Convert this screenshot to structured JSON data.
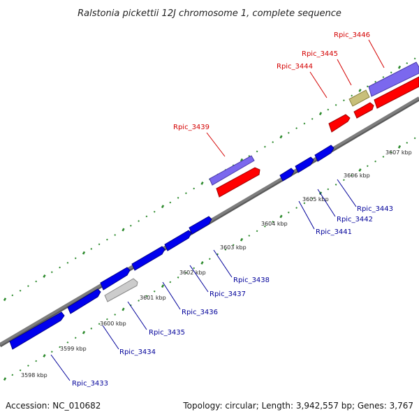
{
  "title": "Ralstonia pickettii 12J chromosome 1, complete sequence",
  "footer": {
    "accession": "Accession: NC_010682",
    "summary": "Topology: circular; Length: 3,942,557 bp; Genes: 3,767"
  },
  "colors": {
    "backbone": "#7d7d7d",
    "dots": "#2e8b2e",
    "plus_label": "#d40000",
    "minus_label": "#00009a",
    "gene_red": "#ff0000",
    "gene_blue": "#0000ee",
    "gene_purple": "#7b68ee",
    "gene_olive": "#c8bf7a",
    "gene_gray": "#cccccc"
  },
  "ticks": [
    "3598 kbp",
    "3599 kbp",
    "3600 kbp",
    "3601 kbp",
    "3602 kbp",
    "3603 kbp",
    "3604 kbp",
    "3605 kbp",
    "3606 kbp",
    "3607 kbp"
  ],
  "genes_plus": [
    {
      "name": "Rpic_3439",
      "features": [
        "purple",
        "red"
      ]
    },
    {
      "name": "Rpic_3444",
      "features": [
        "red"
      ]
    },
    {
      "name": "Rpic_3445",
      "features": [
        "olive",
        "red"
      ]
    },
    {
      "name": "Rpic_3446",
      "features": [
        "purple",
        "red"
      ]
    }
  ],
  "genes_minus": [
    "Rpic_3433",
    "Rpic_3434",
    "Rpic_3435",
    "Rpic_3436",
    "Rpic_3437",
    "Rpic_3438",
    "Rpic_3441",
    "Rpic_3442",
    "Rpic_3443"
  ]
}
